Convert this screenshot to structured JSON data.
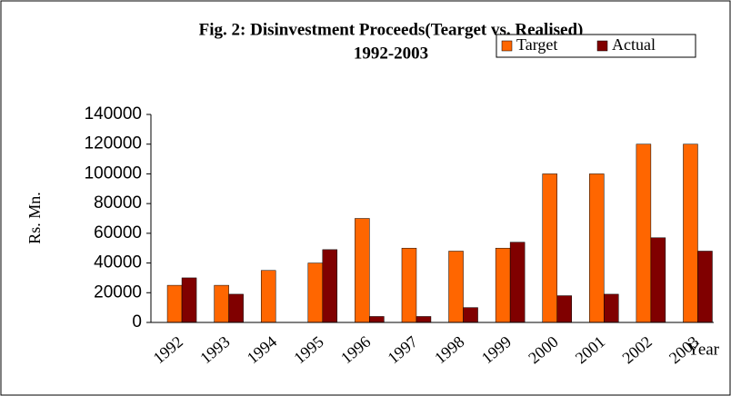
{
  "chart_data": {
    "type": "bar",
    "title": "Fig. 2: Disinvestment Proceeds(Tearget vs. Realised)",
    "subtitle": "1992-2003",
    "y_label": "Rs. Mn.",
    "x_label": "Year",
    "categories": [
      "1992",
      "1993",
      "1994",
      "1995",
      "1996",
      "1997",
      "1998",
      "1999",
      "2000",
      "2001",
      "2002",
      "2003"
    ],
    "series": [
      {
        "name": "Target",
        "color": "#ff6600",
        "values": [
          25000,
          25000,
          35000,
          40000,
          70000,
          50000,
          48000,
          50000,
          100000,
          100000,
          120000,
          120000
        ]
      },
      {
        "name": "Actual",
        "color": "#800000",
        "values": [
          30000,
          19000,
          0,
          49000,
          4000,
          4000,
          10000,
          54000,
          18000,
          19000,
          57000,
          48000
        ]
      }
    ],
    "ylim": [
      0,
      140000
    ],
    "yticks": [
      0,
      20000,
      40000,
      60000,
      80000,
      100000,
      120000,
      140000
    ],
    "grid": false,
    "legend": "top-right"
  }
}
